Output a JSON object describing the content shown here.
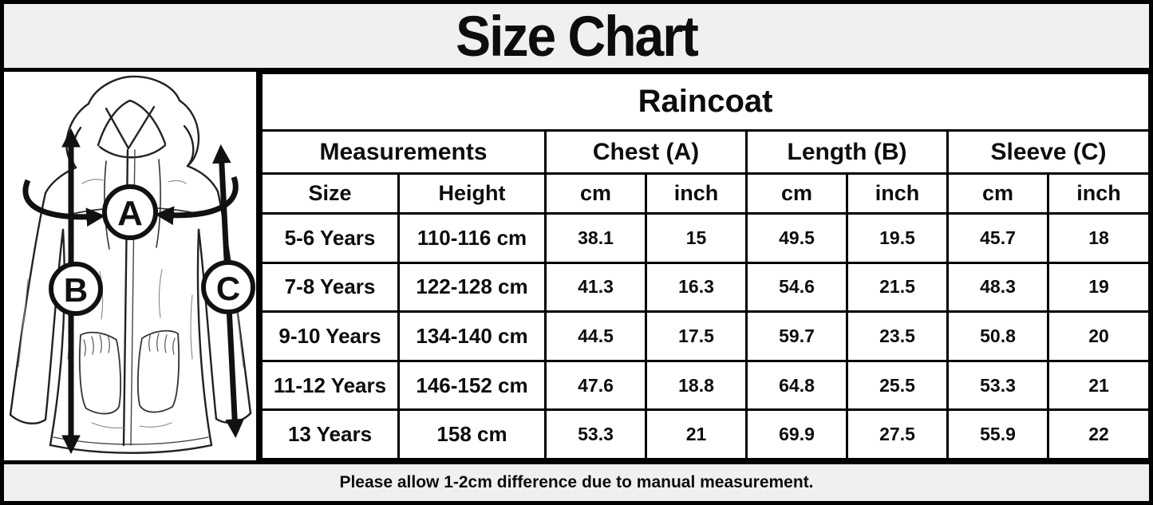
{
  "title": "Size Chart",
  "footer_note": "Please allow 1-2cm difference due to manual measurement.",
  "table": {
    "product": "Raincoat",
    "group_headers": [
      {
        "label": "Measurements",
        "span": 2
      },
      {
        "label": "Chest (A)",
        "span": 2
      },
      {
        "label": "Length (B)",
        "span": 2
      },
      {
        "label": "Sleeve (C)",
        "span": 2
      }
    ],
    "sub_headers": [
      "Size",
      "Height",
      "cm",
      "inch",
      "cm",
      "inch",
      "cm",
      "inch"
    ],
    "rows": [
      {
        "size": "5-6 Years",
        "height": "110-116 cm",
        "chest_cm": "38.1",
        "chest_inch": "15",
        "length_cm": "49.5",
        "length_inch": "19.5",
        "sleeve_cm": "45.7",
        "sleeve_inch": "18"
      },
      {
        "size": "7-8 Years",
        "height": "122-128 cm",
        "chest_cm": "41.3",
        "chest_inch": "16.3",
        "length_cm": "54.6",
        "length_inch": "21.5",
        "sleeve_cm": "48.3",
        "sleeve_inch": "19"
      },
      {
        "size": "9-10 Years",
        "height": "134-140 cm",
        "chest_cm": "44.5",
        "chest_inch": "17.5",
        "length_cm": "59.7",
        "length_inch": "23.5",
        "sleeve_cm": "50.8",
        "sleeve_inch": "20"
      },
      {
        "size": "11-12 Years",
        "height": "146-152 cm",
        "chest_cm": "47.6",
        "chest_inch": "18.8",
        "length_cm": "64.8",
        "length_inch": "25.5",
        "sleeve_cm": "53.3",
        "sleeve_inch": "21"
      },
      {
        "size": "13 Years",
        "height": "158 cm",
        "chest_cm": "53.3",
        "chest_inch": "21",
        "length_cm": "69.9",
        "length_inch": "27.5",
        "sleeve_cm": "55.9",
        "sleeve_inch": "22"
      }
    ]
  },
  "diagram": {
    "chest_label": "A",
    "length_label": "B",
    "sleeve_label": "C"
  },
  "colors": {
    "header_bg": "#f0f0f0",
    "cell_bg": "#ffffff",
    "border": "#000000",
    "text": "#0d0d0d"
  }
}
